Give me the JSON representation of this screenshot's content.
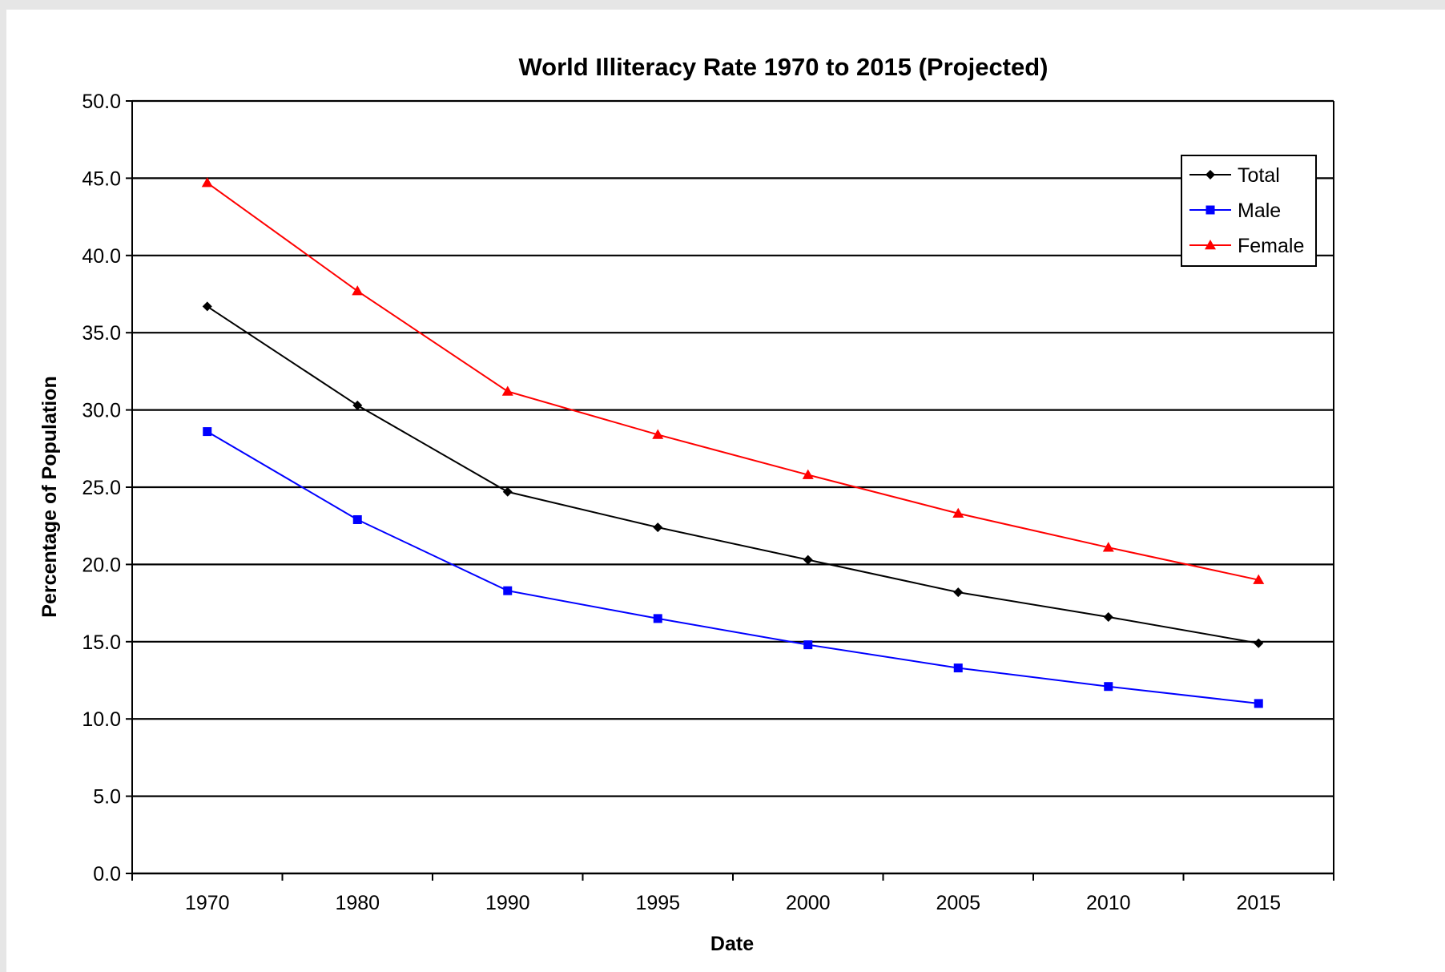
{
  "chart_data": {
    "type": "line",
    "title": "World Illiteracy Rate 1970 to 2015 (Projected)",
    "xlabel": "Date",
    "ylabel": "Percentage of Population",
    "categories": [
      "1970",
      "1980",
      "1990",
      "1995",
      "2000",
      "2005",
      "2010",
      "2015"
    ],
    "ylim": [
      0,
      50
    ],
    "yticks": [
      "0.0",
      "5.0",
      "10.0",
      "15.0",
      "20.0",
      "25.0",
      "30.0",
      "35.0",
      "40.0",
      "45.0",
      "50.0"
    ],
    "grid": "horizontal",
    "legend_position": "top-right",
    "series": [
      {
        "name": "Total",
        "color": "#000000",
        "marker": "diamond",
        "values": [
          36.7,
          30.3,
          24.7,
          22.4,
          20.3,
          18.2,
          16.6,
          14.9
        ]
      },
      {
        "name": "Male",
        "color": "#0000ff",
        "marker": "square",
        "values": [
          28.6,
          22.9,
          18.3,
          16.5,
          14.8,
          13.3,
          12.1,
          11.0
        ]
      },
      {
        "name": "Female",
        "color": "#ff0000",
        "marker": "triangle",
        "values": [
          44.7,
          37.7,
          31.2,
          28.4,
          25.8,
          23.3,
          21.1,
          19.0
        ]
      }
    ]
  }
}
